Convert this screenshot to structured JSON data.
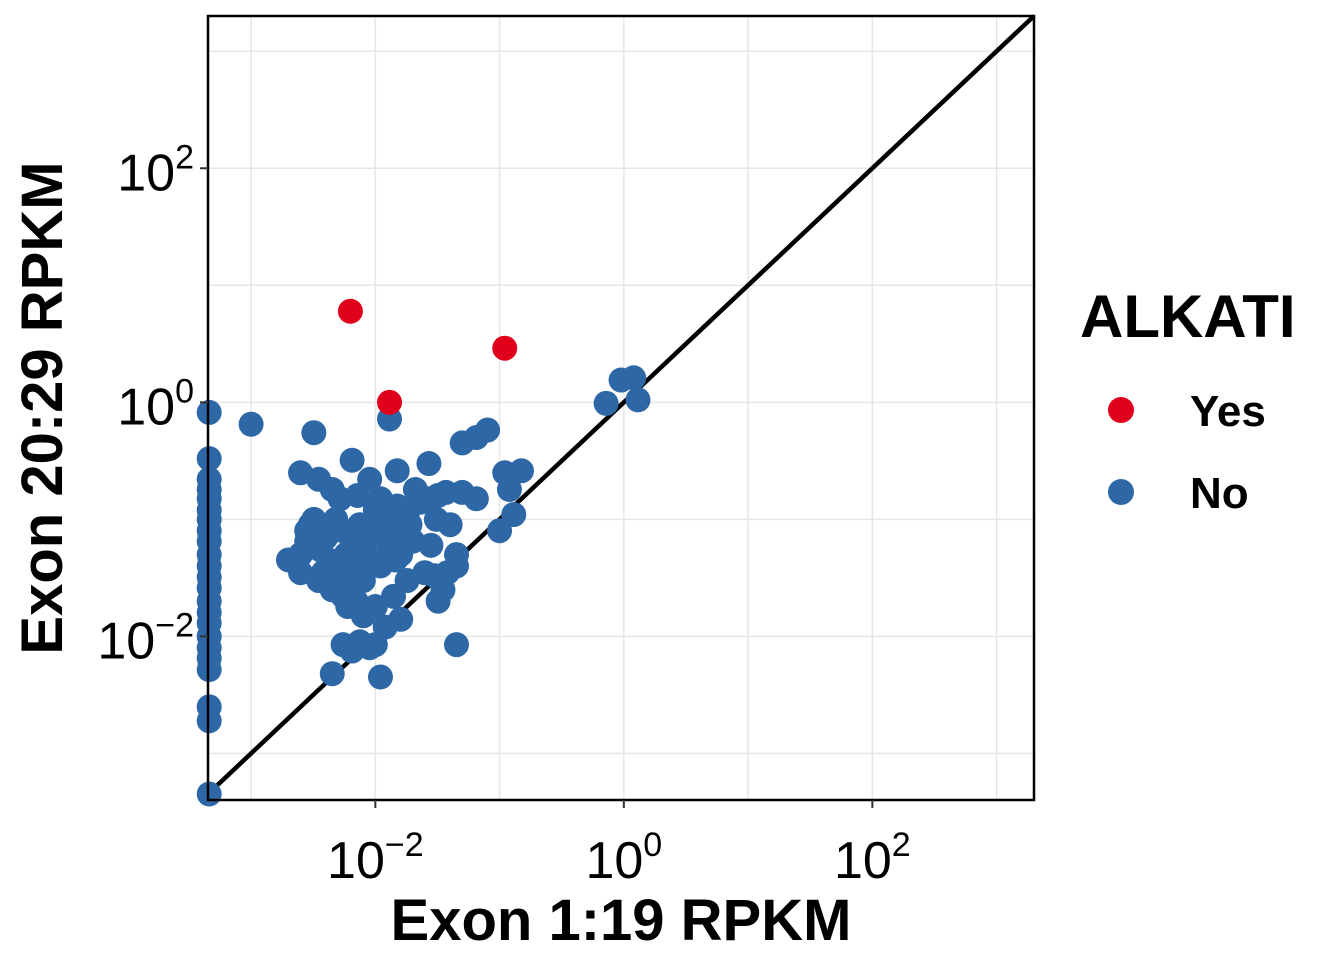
{
  "chart_data": {
    "type": "scatter",
    "title": "",
    "xlabel": "Exon 1:19 RPKM",
    "ylabel": "Exon 20:29 RPKM",
    "x_scale": "log10",
    "y_scale": "log10",
    "xlim": [
      0.00045,
      2000
    ],
    "ylim": [
      0.0004,
      2000
    ],
    "x_ticks": [
      {
        "value": 0.01,
        "base": "10",
        "exp": "−2"
      },
      {
        "value": 1,
        "base": "10",
        "exp": "0"
      },
      {
        "value": 100,
        "base": "10",
        "exp": "2"
      }
    ],
    "y_ticks": [
      {
        "value": 0.01,
        "base": "10",
        "exp": "−2"
      },
      {
        "value": 1,
        "base": "10",
        "exp": "0"
      },
      {
        "value": 100,
        "base": "10",
        "exp": "2"
      }
    ],
    "grid": true,
    "reference_line": "y = x",
    "legend": {
      "title": "ALKATI",
      "position": "right",
      "entries": [
        {
          "label": "Yes",
          "color": "#e0001b"
        },
        {
          "label": "No",
          "color": "#2e67a6"
        }
      ]
    },
    "series": [
      {
        "name": "Yes",
        "color": "#e0001b",
        "points": [
          [
            0.0063,
            6.0
          ],
          [
            0.013,
            1.0
          ],
          [
            0.11,
            2.9
          ]
        ]
      },
      {
        "name": "No",
        "color": "#2e67a6",
        "points": [
          [
            0.00046,
            0.82
          ],
          [
            0.00046,
            0.33
          ],
          [
            0.00046,
            0.22
          ],
          [
            0.00046,
            0.18
          ],
          [
            0.00046,
            0.15
          ],
          [
            0.00046,
            0.12
          ],
          [
            0.00046,
            0.1
          ],
          [
            0.00046,
            0.08
          ],
          [
            0.00046,
            0.065
          ],
          [
            0.00046,
            0.05
          ],
          [
            0.00046,
            0.04
          ],
          [
            0.00046,
            0.032
          ],
          [
            0.00046,
            0.026
          ],
          [
            0.00046,
            0.02
          ],
          [
            0.00046,
            0.016
          ],
          [
            0.00046,
            0.013
          ],
          [
            0.00046,
            0.01
          ],
          [
            0.00046,
            0.008
          ],
          [
            0.00046,
            0.0065
          ],
          [
            0.00046,
            0.0052
          ],
          [
            0.00046,
            0.0025
          ],
          [
            0.00046,
            0.0019
          ],
          [
            0.00046,
            0.00045
          ],
          [
            0.001,
            0.65
          ],
          [
            0.0032,
            0.55
          ],
          [
            0.013,
            0.72
          ],
          [
            0.08,
            0.58
          ],
          [
            0.065,
            0.5
          ],
          [
            0.05,
            0.45
          ],
          [
            0.72,
            0.98
          ],
          [
            0.95,
            1.55
          ],
          [
            1.2,
            1.62
          ],
          [
            1.3,
            1.05
          ],
          [
            0.0025,
            0.25
          ],
          [
            0.0035,
            0.22
          ],
          [
            0.0065,
            0.32
          ],
          [
            0.009,
            0.22
          ],
          [
            0.0045,
            0.18
          ],
          [
            0.0052,
            0.15
          ],
          [
            0.0072,
            0.16
          ],
          [
            0.011,
            0.15
          ],
          [
            0.015,
            0.26
          ],
          [
            0.027,
            0.3
          ],
          [
            0.021,
            0.18
          ],
          [
            0.026,
            0.15
          ],
          [
            0.032,
            0.16
          ],
          [
            0.037,
            0.17
          ],
          [
            0.05,
            0.17
          ],
          [
            0.065,
            0.15
          ],
          [
            0.11,
            0.25
          ],
          [
            0.12,
            0.18
          ],
          [
            0.15,
            0.26
          ],
          [
            0.13,
            0.11
          ],
          [
            0.1,
            0.08
          ],
          [
            0.04,
            0.09
          ],
          [
            0.031,
            0.1
          ],
          [
            0.028,
            0.06
          ],
          [
            0.023,
            0.14
          ],
          [
            0.018,
            0.11
          ],
          [
            0.015,
            0.13
          ],
          [
            0.012,
            0.08
          ],
          [
            0.01,
            0.12
          ],
          [
            0.009,
            0.07
          ],
          [
            0.0075,
            0.09
          ],
          [
            0.0065,
            0.06
          ],
          [
            0.0055,
            0.08
          ],
          [
            0.0048,
            0.1
          ],
          [
            0.004,
            0.07
          ],
          [
            0.0036,
            0.055
          ],
          [
            0.003,
            0.09
          ],
          [
            0.0028,
            0.065
          ],
          [
            0.0025,
            0.05
          ],
          [
            0.002,
            0.045
          ],
          [
            0.0025,
            0.035
          ],
          [
            0.0035,
            0.03
          ],
          [
            0.0045,
            0.025
          ],
          [
            0.005,
            0.028
          ],
          [
            0.0055,
            0.022
          ],
          [
            0.006,
            0.018
          ],
          [
            0.007,
            0.02
          ],
          [
            0.008,
            0.03
          ],
          [
            0.009,
            0.045
          ],
          [
            0.011,
            0.04
          ],
          [
            0.013,
            0.055
          ],
          [
            0.016,
            0.05
          ],
          [
            0.02,
            0.065
          ],
          [
            0.018,
            0.03
          ],
          [
            0.014,
            0.022
          ],
          [
            0.01,
            0.018
          ],
          [
            0.008,
            0.015
          ],
          [
            0.0055,
            0.0085
          ],
          [
            0.0065,
            0.0075
          ],
          [
            0.0075,
            0.009
          ],
          [
            0.009,
            0.008
          ],
          [
            0.01,
            0.0085
          ],
          [
            0.012,
            0.012
          ],
          [
            0.016,
            0.014
          ],
          [
            0.025,
            0.035
          ],
          [
            0.03,
            0.033
          ],
          [
            0.038,
            0.035
          ],
          [
            0.045,
            0.04
          ],
          [
            0.045,
            0.05
          ],
          [
            0.035,
            0.025
          ],
          [
            0.032,
            0.02
          ],
          [
            0.045,
            0.0085
          ],
          [
            0.011,
            0.0045
          ],
          [
            0.0045,
            0.0048
          ],
          [
            0.0038,
            0.035
          ],
          [
            0.0042,
            0.045
          ],
          [
            0.0058,
            0.05
          ],
          [
            0.0068,
            0.04
          ],
          [
            0.0078,
            0.055
          ],
          [
            0.0085,
            0.065
          ],
          [
            0.0095,
            0.075
          ],
          [
            0.011,
            0.07
          ],
          [
            0.013,
            0.085
          ],
          [
            0.015,
            0.08
          ],
          [
            0.017,
            0.07
          ],
          [
            0.019,
            0.09
          ],
          [
            0.0105,
            0.1
          ],
          [
            0.0125,
            0.065
          ],
          [
            0.0145,
            0.045
          ],
          [
            0.0165,
            0.1
          ],
          [
            0.0028,
            0.08
          ],
          [
            0.0032,
            0.1
          ],
          [
            0.0048,
            0.04
          ],
          [
            0.0062,
            0.028
          ]
        ]
      }
    ]
  }
}
